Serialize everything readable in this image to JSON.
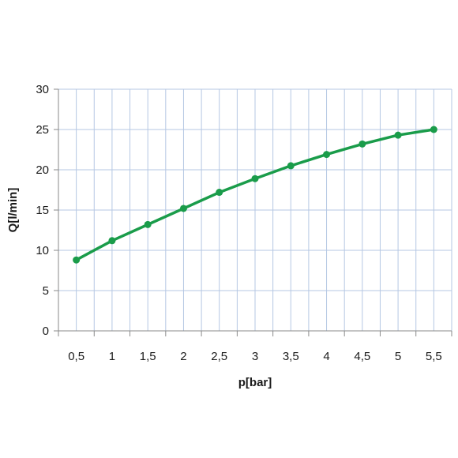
{
  "chart_data": {
    "type": "line",
    "title": "",
    "xlabel": "p[bar]",
    "ylabel": "Q[l/min]",
    "x_categories": [
      "0,5",
      "1",
      "1,5",
      "2",
      "2,5",
      "3",
      "3,5",
      "4",
      "4,5",
      "5",
      "5,5"
    ],
    "x": [
      0.5,
      1,
      1.5,
      2,
      2.5,
      3,
      3.5,
      4,
      4.5,
      5,
      5.5
    ],
    "series": [
      {
        "values": [
          8.8,
          11.2,
          13.2,
          15.2,
          17.2,
          18.9,
          20.5,
          21.9,
          23.2,
          24.3,
          25.0
        ],
        "color": "#1a9c4a"
      }
    ],
    "ylim": [
      0,
      30
    ],
    "y_ticks": [
      0,
      5,
      10,
      15,
      20,
      25,
      30
    ],
    "grid": true,
    "grid_color": "#b5c7e3",
    "axis_color": "#8a8a8a",
    "legend": "none"
  }
}
